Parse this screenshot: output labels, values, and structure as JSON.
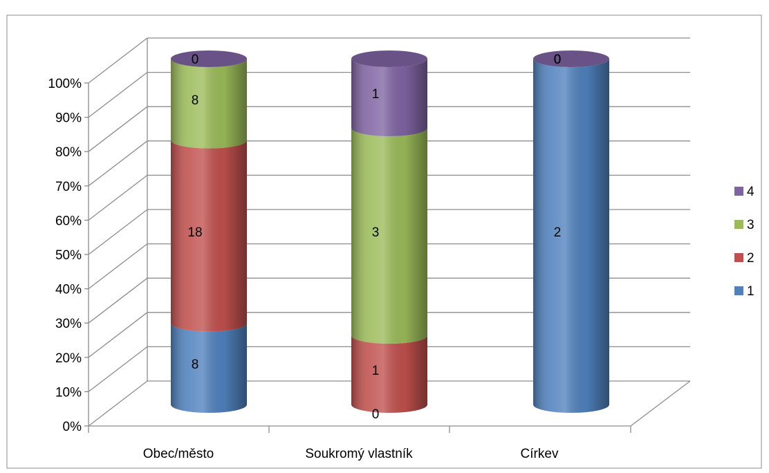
{
  "chart_data": {
    "type": "bar",
    "subtype": "stacked-100-percent-3d-cylinder",
    "title": "",
    "xlabel": "",
    "ylabel": "",
    "categories": [
      "Obec/město",
      "Soukromý vlastník",
      "Církev"
    ],
    "yticks": [
      "0%",
      "10%",
      "20%",
      "30%",
      "40%",
      "50%",
      "60%",
      "70%",
      "80%",
      "90%",
      "100%"
    ],
    "ylim": [
      0,
      100
    ],
    "grid": true,
    "legend_position": "right",
    "series": [
      {
        "name": "1",
        "color": "#4f81bd",
        "values": [
          8,
          0,
          2
        ]
      },
      {
        "name": "2",
        "color": "#c0504d",
        "values": [
          18,
          1,
          0
        ]
      },
      {
        "name": "3",
        "color": "#9bbb59",
        "values": [
          8,
          3,
          0
        ]
      },
      {
        "name": "4",
        "color": "#8064a2",
        "values": [
          0,
          1,
          0
        ]
      }
    ]
  }
}
